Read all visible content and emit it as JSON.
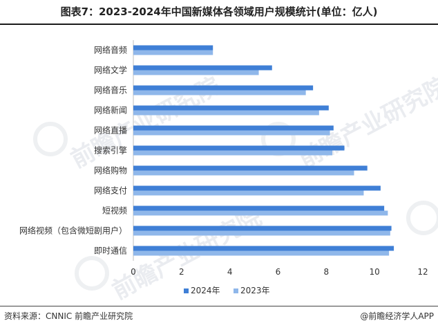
{
  "title": "图表7：2023-2024年中国新媒体各领域用户规模统计(单位：亿人)",
  "source": "资料来源：CNNIC 前瞻产业研究院",
  "credit": "@前瞻经济学人APP",
  "watermark": "前瞻产业研究院",
  "colors": {
    "2024": "#3f7fd6",
    "2023": "#8fb7ea",
    "axis": "#bfbfbf",
    "text": "#333333"
  },
  "chart_data": {
    "type": "bar",
    "orientation": "horizontal",
    "categories": [
      "网络音频",
      "网络文学",
      "网络音乐",
      "网络新闻",
      "网络直播",
      "搜索引擎",
      "网络购物",
      "网络支付",
      "短视频",
      "网络视频（包含微短剧用户）",
      "即时通信"
    ],
    "series": [
      {
        "name": "2024年",
        "values": [
          3.3,
          5.75,
          7.45,
          8.1,
          8.3,
          8.75,
          9.7,
          10.25,
          10.4,
          10.7,
          10.8
        ]
      },
      {
        "name": "2023年",
        "values": [
          3.3,
          5.2,
          7.15,
          7.7,
          8.15,
          8.25,
          9.15,
          9.55,
          10.55,
          10.65,
          10.6
        ]
      }
    ],
    "xlim": [
      0,
      12
    ],
    "xticks": [
      0,
      2,
      4,
      6,
      8,
      10,
      12
    ],
    "legend_position": "bottom-center",
    "grid": false
  }
}
